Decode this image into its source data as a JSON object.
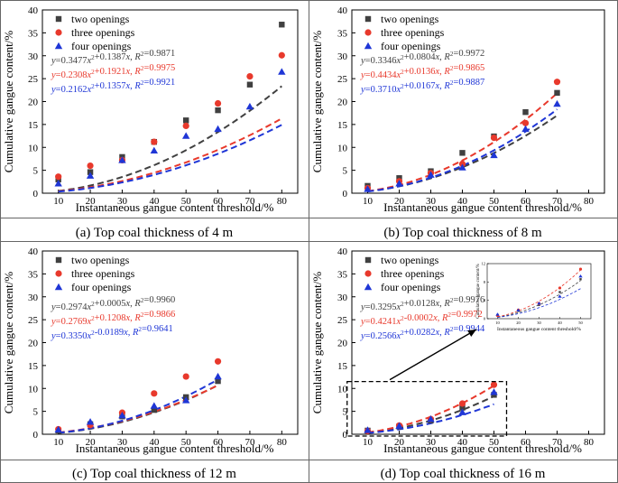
{
  "chart_data": [
    {
      "type": "scatter",
      "panel": "a",
      "caption": "(a) Top coal thickness of 4 m",
      "xlabel": "Instantaneous gangue content threshold/%",
      "ylabel": "Cumulative gangue content/%",
      "xlim": [
        5,
        85
      ],
      "ylim": [
        0,
        40
      ],
      "xticks": [
        10,
        20,
        30,
        40,
        50,
        60,
        70,
        80
      ],
      "yticks": [
        0,
        5,
        10,
        15,
        20,
        25,
        30,
        35,
        40
      ],
      "legend_position": "top-left",
      "series": [
        {
          "name": "two openings",
          "color": "#404040",
          "marker": "square",
          "x": [
            10,
            20,
            30,
            40,
            50,
            60,
            70,
            80
          ],
          "y": [
            3.0,
            4.6,
            7.9,
            11.2,
            15.9,
            18.1,
            23.7,
            36.8
          ],
          "fit_label": "y=0.3477x²+0.1387x, R²=0.9871",
          "fit_a": 0.3477,
          "fit_b": 0.1387
        },
        {
          "name": "three openings",
          "color": "#e8392c",
          "marker": "circle",
          "x": [
            10,
            20,
            30,
            40,
            50,
            60,
            70,
            80
          ],
          "y": [
            3.6,
            6.0,
            7.2,
            11.2,
            14.7,
            19.6,
            25.5,
            30.1
          ],
          "fit_label": "y=0.2308x²+0.1921x, R²=0.9975",
          "fit_a": 0.2308,
          "fit_b": 0.1921
        },
        {
          "name": "four openings",
          "color": "#1f36d6",
          "marker": "triangle",
          "x": [
            10,
            20,
            30,
            40,
            50,
            60,
            70,
            80
          ],
          "y": [
            2.1,
            3.8,
            7.2,
            9.3,
            12.5,
            14.0,
            18.9,
            26.5
          ],
          "fit_label": "y=0.2162x²+0.1357x, R²=0.9921",
          "fit_a": 0.2162,
          "fit_b": 0.1357
        }
      ]
    },
    {
      "type": "scatter",
      "panel": "b",
      "caption": "(b) Top coal thickness of 8 m",
      "xlabel": "Instantaneous gangue content threshold/%",
      "ylabel": "Cumulative gangue content/%",
      "xlim": [
        5,
        85
      ],
      "ylim": [
        0,
        40
      ],
      "xticks": [
        10,
        20,
        30,
        40,
        50,
        60,
        70,
        80
      ],
      "yticks": [
        0,
        5,
        10,
        15,
        20,
        25,
        30,
        35,
        40
      ],
      "legend_position": "top-left",
      "series": [
        {
          "name": "two openings",
          "color": "#404040",
          "marker": "square",
          "x": [
            10,
            20,
            30,
            40,
            50,
            60,
            70
          ],
          "y": [
            1.6,
            3.3,
            4.8,
            8.8,
            12.4,
            17.7,
            21.9
          ],
          "fit_label": "y=0.3346x²+0.0804x, R²=0.9972",
          "fit_a": 0.3346,
          "fit_b": 0.0804
        },
        {
          "name": "three openings",
          "color": "#e8392c",
          "marker": "circle",
          "x": [
            10,
            20,
            30,
            40,
            50,
            60,
            70
          ],
          "y": [
            1.1,
            2.6,
            4.4,
            6.4,
            12.1,
            15.3,
            24.3
          ],
          "fit_label": "y=0.4434x²+0.0136x, R²=0.9865",
          "fit_a": 0.4434,
          "fit_b": 0.0136
        },
        {
          "name": "four openings",
          "color": "#1f36d6",
          "marker": "triangle",
          "x": [
            10,
            20,
            30,
            40,
            50,
            60,
            70
          ],
          "y": [
            0.9,
            2.1,
            4.0,
            5.6,
            8.3,
            14.0,
            19.5
          ],
          "fit_label": "y=0.3710x²+0.0167x, R²=0.9887",
          "fit_a": 0.371,
          "fit_b": 0.0167
        }
      ]
    },
    {
      "type": "scatter",
      "panel": "c",
      "caption": "(c) Top coal thickness of 12 m",
      "xlabel": "Instantaneous gangue content threshold/%",
      "ylabel": "Cumulative gangue content/%",
      "xlim": [
        5,
        85
      ],
      "ylim": [
        0,
        40
      ],
      "xticks": [
        10,
        20,
        30,
        40,
        50,
        60,
        70,
        80
      ],
      "yticks": [
        0,
        5,
        10,
        15,
        20,
        25,
        30,
        35,
        40
      ],
      "legend_position": "top-left",
      "series": [
        {
          "name": "two openings",
          "color": "#404040",
          "marker": "square",
          "x": [
            10,
            20,
            30,
            40,
            50,
            60
          ],
          "y": [
            0.8,
            2.2,
            3.9,
            5.3,
            8.1,
            11.6
          ],
          "fit_label": "y=0.2974x²+0.0005x, R²=0.9960",
          "fit_a": 0.2974,
          "fit_b": 0.0005
        },
        {
          "name": "three openings",
          "color": "#e8392c",
          "marker": "circle",
          "x": [
            10,
            20,
            30,
            40,
            50,
            60
          ],
          "y": [
            1.1,
            2.0,
            4.7,
            8.9,
            12.6,
            15.9
          ],
          "fit_label": "y=0.2769x²+0.1208x, R²=0.9866",
          "fit_a": 0.2769,
          "fit_b": 0.1208
        },
        {
          "name": "four openings",
          "color": "#1f36d6",
          "marker": "triangle",
          "x": [
            10,
            20,
            30,
            40,
            50,
            60
          ],
          "y": [
            1.0,
            2.7,
            4.1,
            6.2,
            7.4,
            12.6
          ],
          "fit_label": "y=0.3350x²-0.0189x, R²=0.9641",
          "fit_a": 0.335,
          "fit_b": -0.0189
        }
      ]
    },
    {
      "type": "scatter",
      "panel": "d",
      "caption": "(d) Top coal thickness of 16 m",
      "xlabel": "Instantaneous gangue content threshold/%",
      "ylabel": "Cumulative gangue content/%",
      "xlim": [
        5,
        85
      ],
      "ylim": [
        0,
        40
      ],
      "xticks": [
        10,
        20,
        30,
        40,
        50,
        60,
        70,
        80
      ],
      "yticks": [
        0,
        5,
        10,
        15,
        20,
        25,
        30,
        35,
        40
      ],
      "legend_position": "top-left",
      "inset": {
        "xlabel": "Instantaneous gangue content threshold/%",
        "ylabel": "Cumulative gangue content/%",
        "xticks": [
          10,
          20,
          30,
          40,
          50
        ],
        "yticks": [
          0,
          4,
          8,
          12
        ],
        "xlim": [
          5,
          55
        ],
        "ylim": [
          0,
          12
        ]
      },
      "series": [
        {
          "name": "two openings",
          "color": "#404040",
          "marker": "square",
          "x": [
            10,
            20,
            30,
            40,
            50
          ],
          "y": [
            0.8,
            1.7,
            3.0,
            5.8,
            8.6
          ],
          "fit_label": "y=0.3295x²+0.0128x, R²=0.9976",
          "fit_a": 0.3295,
          "fit_b": 0.0128
        },
        {
          "name": "three openings",
          "color": "#e8392c",
          "marker": "circle",
          "x": [
            10,
            20,
            30,
            40,
            50
          ],
          "y": [
            0.7,
            1.9,
            3.3,
            6.7,
            10.8
          ],
          "fit_label": "y=0.4241x²-0.0002x, R²=0.9972",
          "fit_a": 0.4241,
          "fit_b": -0.0002
        },
        {
          "name": "four openings",
          "color": "#1f36d6",
          "marker": "triangle",
          "x": [
            10,
            20,
            30,
            40,
            50
          ],
          "y": [
            0.9,
            1.8,
            3.3,
            4.8,
            9.2
          ],
          "fit_label": "y=0.2566x²+0.0282x, R²=0.9944",
          "fit_a": 0.2566,
          "fit_b": 0.0282
        }
      ]
    }
  ]
}
